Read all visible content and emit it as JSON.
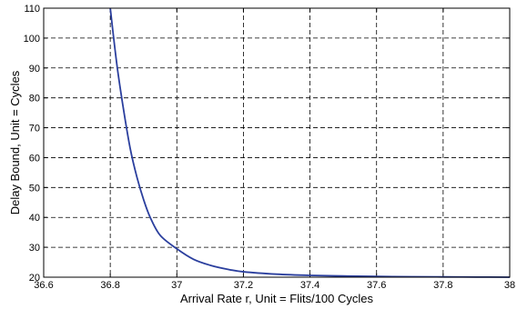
{
  "chart_data": {
    "type": "line",
    "title": "",
    "xlabel": "Arrival Rate r, Unit = Flits/100 Cycles",
    "ylabel": "Delay Bound, Unit = Cycles",
    "xlim": [
      36.6,
      38
    ],
    "ylim": [
      20,
      110
    ],
    "grid": true,
    "xticks": [
      36.6,
      36.8,
      37,
      37.2,
      37.4,
      37.6,
      37.8,
      38
    ],
    "xtick_labels": [
      "36.6",
      "36.8",
      "37",
      "37.2",
      "37.4",
      "37.6",
      "37.8",
      "38"
    ],
    "yticks": [
      20,
      30,
      40,
      50,
      60,
      70,
      80,
      90,
      100,
      110
    ],
    "ytick_labels": [
      "20",
      "30",
      "40",
      "50",
      "60",
      "70",
      "80",
      "90",
      "100",
      "110"
    ],
    "series": [
      {
        "color": "#2b3f9e",
        "x": [
          36.8,
          36.82,
          36.84,
          36.86,
          36.88,
          36.9,
          36.92,
          36.95,
          37.0,
          37.05,
          37.1,
          37.15,
          37.2,
          37.3,
          37.4,
          37.5,
          37.6,
          37.7,
          37.8,
          37.9,
          38.0
        ],
        "y": [
          110,
          91,
          76,
          63,
          53.5,
          46,
          40,
          34,
          29.5,
          26,
          24,
          22.7,
          21.8,
          21,
          20.6,
          20.4,
          20.25,
          20.15,
          20.1,
          20.05,
          20
        ]
      }
    ]
  }
}
